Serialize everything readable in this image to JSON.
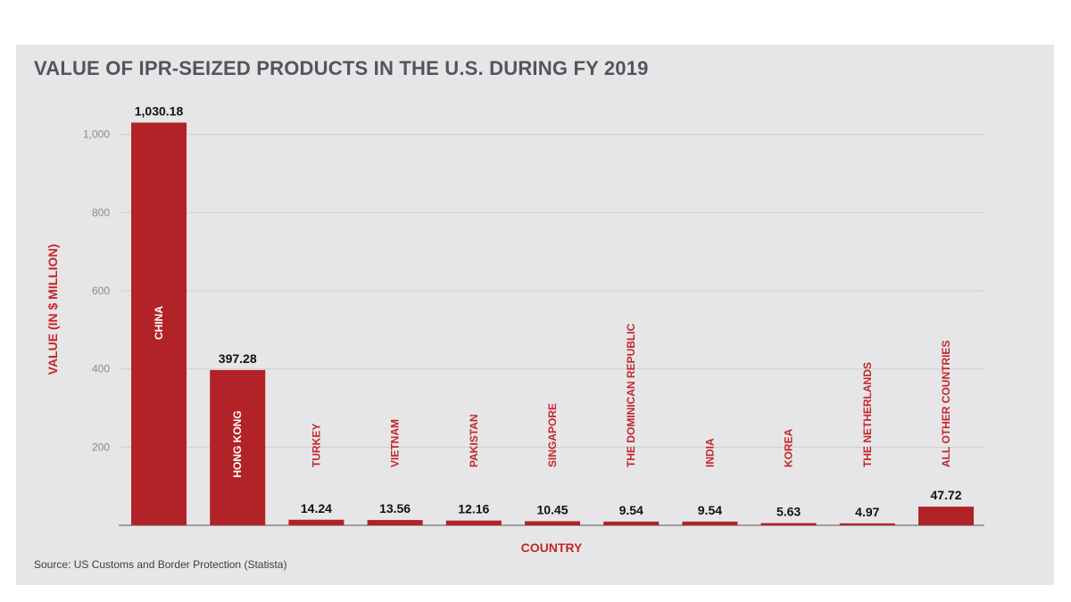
{
  "chart_data": {
    "type": "bar",
    "title": "VALUE OF IPR-SEIZED PRODUCTS IN THE U.S. DURING FY 2019",
    "xlabel": "COUNTRY",
    "ylabel": "VALUE (IN $ MILLION)",
    "categories": [
      "CHINA",
      "HONG KONG",
      "TURKEY",
      "VIETNAM",
      "PAKISTAN",
      "SINGAPORE",
      "THE DOMINICAN REPUBLIC",
      "INDIA",
      "KOREA",
      "THE NETHERLANDS",
      "ALL OTHER COUNTRIES"
    ],
    "values": [
      1030.18,
      397.28,
      14.24,
      13.56,
      12.16,
      10.45,
      9.54,
      9.54,
      5.63,
      4.97,
      47.72
    ],
    "value_labels": [
      "1,030.18",
      "397.28",
      "14.24",
      "13.56",
      "12.16",
      "10.45",
      "9.54",
      "9.54",
      "5.63",
      "4.97",
      "47.72"
    ],
    "yticks": [
      200,
      400,
      600,
      800,
      1000
    ],
    "ytick_labels": [
      "200",
      "400",
      "600",
      "800",
      "1,000"
    ],
    "ylim": [
      0,
      1100
    ],
    "grid": true,
    "legend": "none",
    "source": "Source: US Customs and Border Protection (Statista)",
    "colors": {
      "bar": "#b22328",
      "label": "#c4252b",
      "background": "#e6e6e8",
      "title": "#54545a"
    }
  }
}
